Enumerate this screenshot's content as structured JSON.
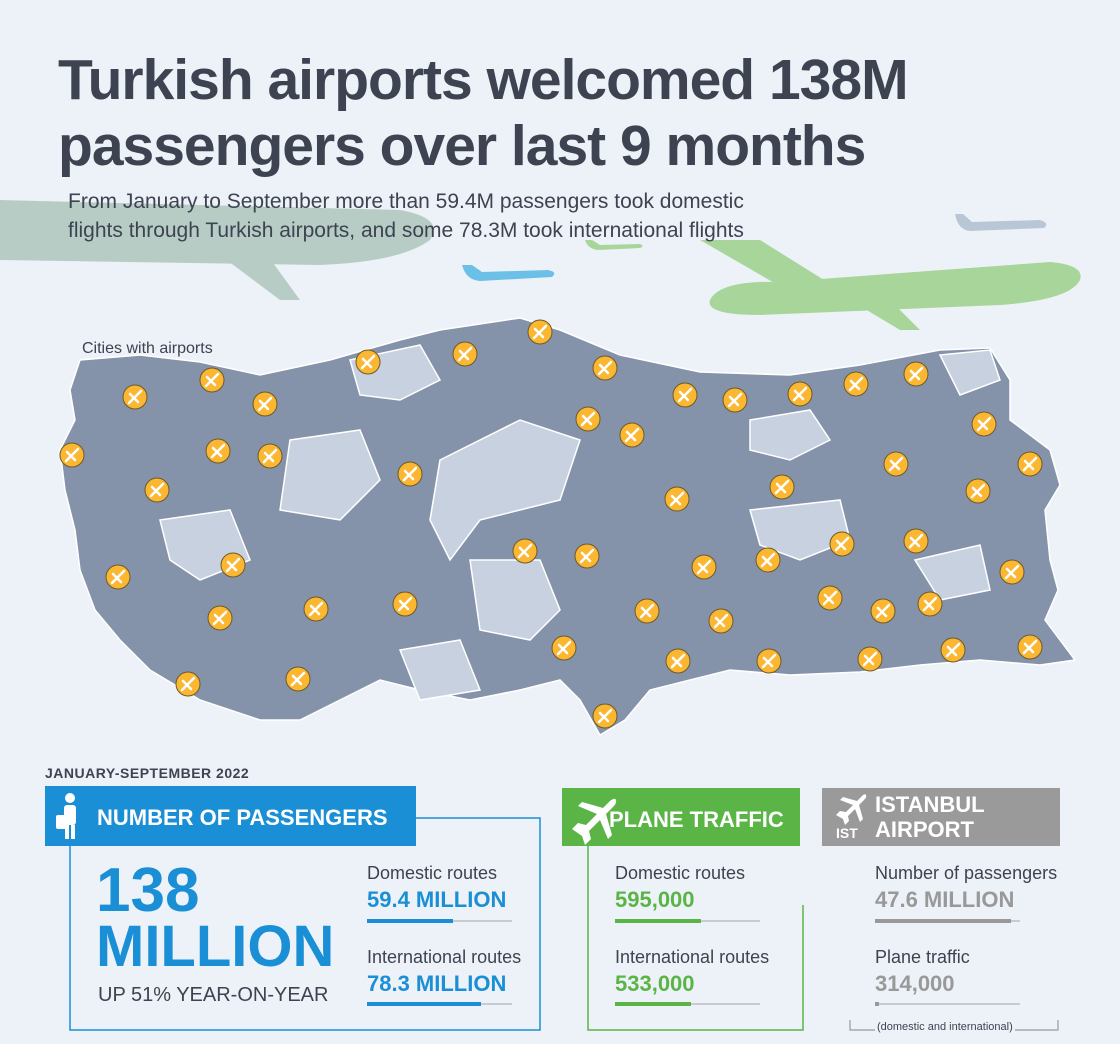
{
  "header": {
    "title": [
      "Turkish airports welcomed 138M",
      "passengers over last 9 months"
    ],
    "subtitle": [
      "From January to September more than 59.4M passengers took domestic",
      "flights through Turkish airports, and some 78.3M took international flights"
    ]
  },
  "map": {
    "label": "Cities with airports"
  },
  "period": "JANUARY-SEPTEMBER 2022",
  "passengers": {
    "title": "NUMBER OF PASSENGERS",
    "total_number": "138",
    "total_unit": "MILLION",
    "change": "UP 51% YEAR-ON-YEAR",
    "items": [
      {
        "label": "Domestic routes",
        "value": "59.4 MILLION"
      },
      {
        "label": "International routes",
        "value": "78.3 MILLION"
      }
    ]
  },
  "traffic": {
    "title": "PLANE TRAFFIC",
    "items": [
      {
        "label": "Domestic routes",
        "value": "595,000"
      },
      {
        "label": "International routes",
        "value": "533,000"
      }
    ]
  },
  "istanbul": {
    "title": [
      "ISTANBUL",
      "AIRPORT"
    ],
    "code": "IST",
    "items": [
      {
        "label": "Number of passengers",
        "value": "47.6 MILLION"
      },
      {
        "label": "Plane traffic",
        "value": "314,000"
      }
    ],
    "note": "(domestic and international)"
  }
}
